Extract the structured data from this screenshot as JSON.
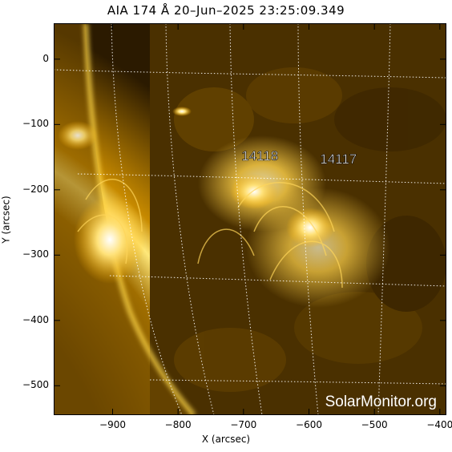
{
  "title": "AIA 174 Å 20–Jun–2025 23:25:09.349",
  "axes": {
    "xlabel": "X (arcsec)",
    "ylabel": "Y (arcsec)",
    "xlim": [
      -990,
      -390
    ],
    "ylim": [
      -545,
      55
    ],
    "xticks": [
      "−900",
      "−800",
      "−700",
      "−600",
      "−500",
      "−400"
    ],
    "xtick_values": [
      -900,
      -800,
      -700,
      -600,
      -500,
      -400
    ],
    "yticks": [
      "0",
      "−100",
      "−200",
      "−300",
      "−400",
      "−500"
    ],
    "ytick_values": [
      0,
      -100,
      -200,
      -300,
      -400,
      -500
    ]
  },
  "regions": [
    {
      "label": "14118",
      "x": -675,
      "y": -155
    },
    {
      "label": "14117",
      "x": -555,
      "y": -160
    }
  ],
  "watermark": "SolarMonitor.org",
  "colors": {
    "sun": "#d7a000",
    "background": "#3a2400",
    "grid": "#ffffff"
  }
}
